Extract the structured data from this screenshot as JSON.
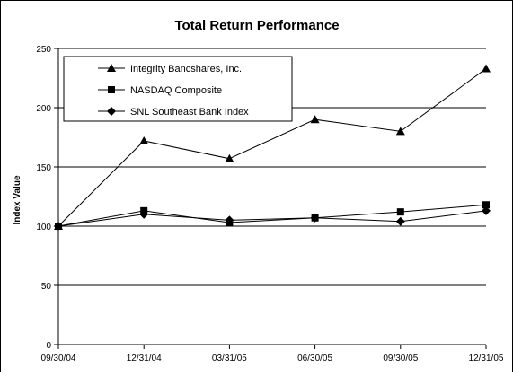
{
  "chart_data": {
    "type": "line",
    "title": "Total Return Performance",
    "xlabel": "",
    "ylabel": "Index Value",
    "categories": [
      "09/30/04",
      "12/31/04",
      "03/31/05",
      "06/30/05",
      "09/30/05",
      "12/31/05"
    ],
    "ylim": [
      0,
      250
    ],
    "yticks": [
      0,
      50,
      100,
      150,
      200,
      250
    ],
    "grid": true,
    "legend": "top-left",
    "series": [
      {
        "name": "Integrity Bancshares, Inc.",
        "marker": "triangle",
        "values": [
          100,
          172,
          157,
          190,
          180,
          233
        ]
      },
      {
        "name": "NASDAQ Composite",
        "marker": "square",
        "values": [
          100,
          113,
          103,
          107,
          112,
          118
        ]
      },
      {
        "name": "SNL Southeast Bank Index",
        "marker": "diamond",
        "values": [
          100,
          110,
          105,
          107,
          104,
          113
        ]
      }
    ]
  }
}
